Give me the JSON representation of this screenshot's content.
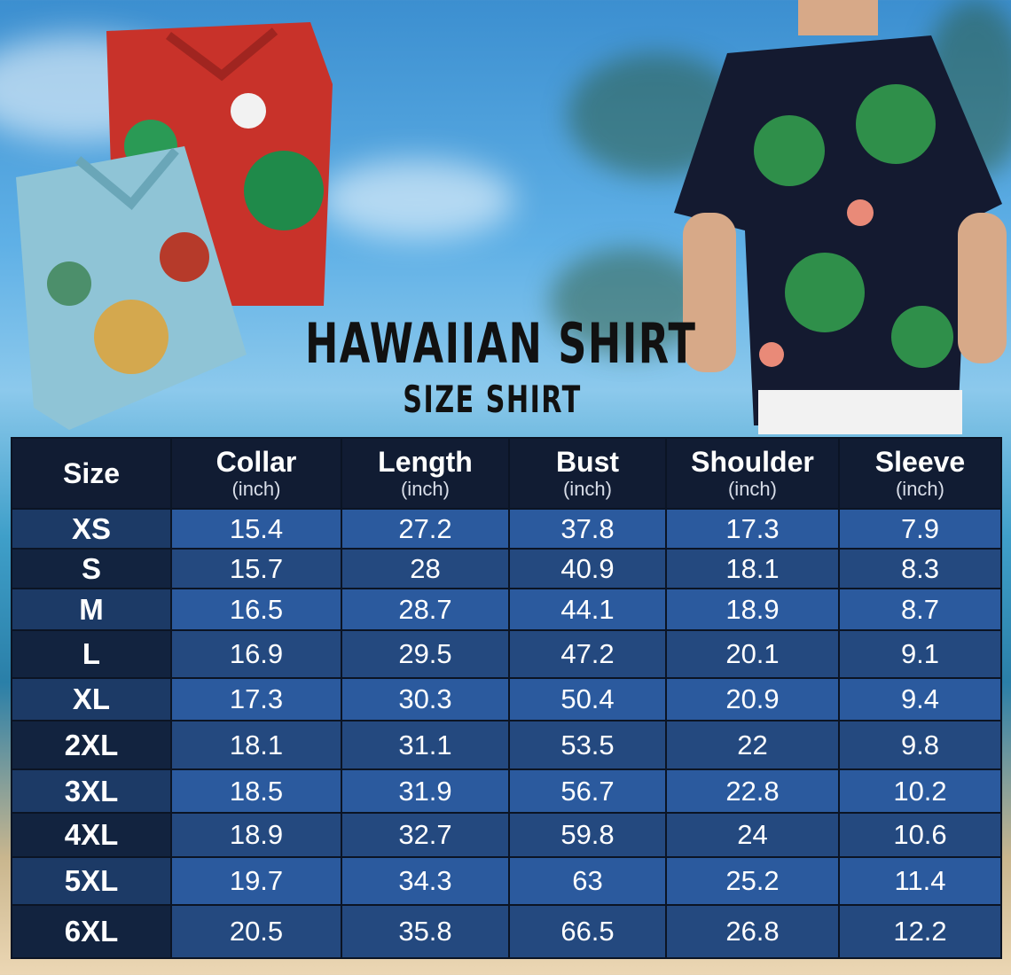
{
  "title": "HAWAIIAN SHIRT",
  "subtitle": "SIZE SHIRT",
  "colors": {
    "header": "#111c33",
    "row_light": "#2b5a9e",
    "row_dark": "#24497f",
    "size_col": "#12233f"
  },
  "table": {
    "headers": [
      {
        "label": "Size",
        "unit": ""
      },
      {
        "label": "Collar",
        "unit": "(inch)"
      },
      {
        "label": "Length",
        "unit": "(inch)"
      },
      {
        "label": "Bust",
        "unit": "(inch)"
      },
      {
        "label": "Shoulder",
        "unit": "(inch)"
      },
      {
        "label": "Sleeve",
        "unit": "(inch)"
      }
    ],
    "rows": [
      [
        "XS",
        "15.4",
        "27.2",
        "37.8",
        "17.3",
        "7.9"
      ],
      [
        "S",
        "15.7",
        "28",
        "40.9",
        "18.1",
        "8.3"
      ],
      [
        "M",
        "16.5",
        "28.7",
        "44.1",
        "18.9",
        "8.7"
      ],
      [
        "L",
        "16.9",
        "29.5",
        "47.2",
        "20.1",
        "9.1"
      ],
      [
        "XL",
        "17.3",
        "30.3",
        "50.4",
        "20.9",
        "9.4"
      ],
      [
        "2XL",
        "18.1",
        "31.1",
        "53.5",
        "22",
        "9.8"
      ],
      [
        "3XL",
        "18.5",
        "31.9",
        "56.7",
        "22.8",
        "10.2"
      ],
      [
        "4XL",
        "18.9",
        "32.7",
        "59.8",
        "24",
        "10.6"
      ],
      [
        "5XL",
        "19.7",
        "34.3",
        "63",
        "25.2",
        "11.4"
      ],
      [
        "6XL",
        "20.5",
        "35.8",
        "66.5",
        "26.8",
        "12.2"
      ]
    ]
  }
}
